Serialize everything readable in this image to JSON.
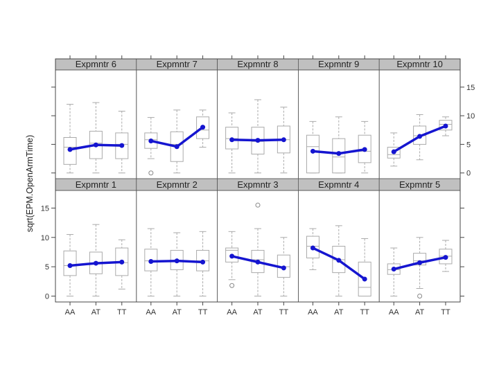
{
  "chart_data": {
    "type": "box",
    "ylabel": "sqrt(EPM.OpenArmTime)",
    "categories": [
      "AA",
      "AT",
      "TT"
    ],
    "y_ticks": [
      0,
      5,
      10,
      15
    ],
    "ylim": [
      -1,
      18
    ],
    "summary_line_color": "#1515d0",
    "box_color": "#aaaaaa",
    "strip_color": "#c0c0c0",
    "panels": [
      {
        "name": "Expmntr 6",
        "row": 0,
        "col": 0,
        "means": [
          4.1,
          4.9,
          4.8
        ],
        "boxes": [
          {
            "low": 0,
            "q1": 1.5,
            "median": 4.5,
            "q3": 6.2,
            "high": 12.0,
            "outliers": []
          },
          {
            "low": 0,
            "q1": 2.5,
            "median": 5.2,
            "q3": 7.3,
            "high": 12.3,
            "outliers": []
          },
          {
            "low": 0,
            "q1": 2.5,
            "median": 5.0,
            "q3": 7.0,
            "high": 10.8,
            "outliers": []
          }
        ]
      },
      {
        "name": "Expmntr 7",
        "row": 0,
        "col": 1,
        "means": [
          5.6,
          4.6,
          8.0
        ],
        "boxes": [
          {
            "low": 2.5,
            "q1": 4.3,
            "median": 5.8,
            "q3": 7.0,
            "high": 9.7,
            "outliers": [
              0
            ]
          },
          {
            "low": 0,
            "q1": 2.0,
            "median": 5.0,
            "q3": 7.2,
            "high": 11.0,
            "outliers": []
          },
          {
            "low": 4.5,
            "q1": 6.0,
            "median": 7.5,
            "q3": 9.8,
            "high": 11.0,
            "outliers": []
          }
        ]
      },
      {
        "name": "Expmntr 8",
        "row": 0,
        "col": 2,
        "means": [
          5.8,
          5.7,
          5.8
        ],
        "boxes": [
          {
            "low": 0,
            "q1": 4.2,
            "median": 6.0,
            "q3": 8.0,
            "high": 10.5,
            "outliers": []
          },
          {
            "low": 0,
            "q1": 3.3,
            "median": 5.5,
            "q3": 8.0,
            "high": 12.8,
            "outliers": []
          },
          {
            "low": 0,
            "q1": 3.5,
            "median": 5.8,
            "q3": 8.2,
            "high": 11.5,
            "outliers": []
          }
        ]
      },
      {
        "name": "Expmntr 9",
        "row": 0,
        "col": 3,
        "means": [
          3.8,
          3.4,
          4.1
        ],
        "boxes": [
          {
            "low": 0,
            "q1": 0,
            "median": 4.6,
            "q3": 6.6,
            "high": 9.0,
            "outliers": []
          },
          {
            "low": 0,
            "q1": 0,
            "median": 2.8,
            "q3": 6.0,
            "high": 9.8,
            "outliers": []
          },
          {
            "low": 0,
            "q1": 1.8,
            "median": 3.8,
            "q3": 6.6,
            "high": 9.0,
            "outliers": []
          }
        ]
      },
      {
        "name": "Expmntr 10",
        "row": 0,
        "col": 4,
        "means": [
          3.7,
          6.4,
          8.2
        ],
        "boxes": [
          {
            "low": 1.2,
            "q1": 2.6,
            "median": 3.2,
            "q3": 4.5,
            "high": 7.0,
            "outliers": []
          },
          {
            "low": 2.3,
            "q1": 5.0,
            "median": 6.5,
            "q3": 8.2,
            "high": 10.2,
            "outliers": []
          },
          {
            "low": 6.5,
            "q1": 7.5,
            "median": 8.5,
            "q3": 9.2,
            "high": 9.8,
            "outliers": []
          }
        ]
      },
      {
        "name": "Expmntr 1",
        "row": 1,
        "col": 0,
        "means": [
          5.2,
          5.6,
          5.8
        ],
        "boxes": [
          {
            "low": 0,
            "q1": 3.5,
            "median": 5.2,
            "q3": 7.7,
            "high": 10.5,
            "outliers": []
          },
          {
            "low": 0,
            "q1": 3.8,
            "median": 5.6,
            "q3": 7.5,
            "high": 12.2,
            "outliers": []
          },
          {
            "low": 1.2,
            "q1": 3.5,
            "median": 5.7,
            "q3": 8.2,
            "high": 9.6,
            "outliers": []
          }
        ]
      },
      {
        "name": "Expmntr 2",
        "row": 1,
        "col": 1,
        "means": [
          5.9,
          6.0,
          5.8
        ],
        "boxes": [
          {
            "low": 0,
            "q1": 4.3,
            "median": 6.0,
            "q3": 8.0,
            "high": 11.5,
            "outliers": []
          },
          {
            "low": 0,
            "q1": 4.5,
            "median": 6.0,
            "q3": 7.8,
            "high": 10.8,
            "outliers": []
          },
          {
            "low": 0,
            "q1": 4.3,
            "median": 6.0,
            "q3": 7.8,
            "high": 11.0,
            "outliers": []
          }
        ]
      },
      {
        "name": "Expmntr 3",
        "row": 1,
        "col": 2,
        "means": [
          6.8,
          5.8,
          4.8
        ],
        "boxes": [
          {
            "low": 2.8,
            "q1": 5.8,
            "median": 7.8,
            "q3": 8.2,
            "high": 11.0,
            "outliers": [
              1.8
            ]
          },
          {
            "low": 0,
            "q1": 4.0,
            "median": 6.2,
            "q3": 7.8,
            "high": 11.5,
            "outliers": [
              15.5
            ]
          },
          {
            "low": 0,
            "q1": 3.2,
            "median": 5.0,
            "q3": 7.0,
            "high": 10.0,
            "outliers": []
          }
        ]
      },
      {
        "name": "Expmntr 4",
        "row": 1,
        "col": 3,
        "means": [
          8.2,
          6.1,
          2.9
        ],
        "boxes": [
          {
            "low": 4.5,
            "q1": 6.5,
            "median": 8.5,
            "q3": 10.2,
            "high": 11.5,
            "outliers": []
          },
          {
            "low": 0,
            "q1": 4.0,
            "median": 6.2,
            "q3": 8.5,
            "high": 12.0,
            "outliers": []
          },
          {
            "low": 0,
            "q1": 0,
            "median": 1.5,
            "q3": 5.8,
            "high": 9.8,
            "outliers": []
          }
        ]
      },
      {
        "name": "Expmntr 5",
        "row": 1,
        "col": 4,
        "means": [
          4.6,
          5.7,
          6.6
        ],
        "boxes": [
          {
            "low": 0,
            "q1": 3.7,
            "median": 4.5,
            "q3": 5.5,
            "high": 8.2,
            "outliers": []
          },
          {
            "low": 1.3,
            "q1": 5.3,
            "median": 6.0,
            "q3": 7.3,
            "high": 10.0,
            "outliers": [
              0
            ]
          },
          {
            "low": 4.2,
            "q1": 5.5,
            "median": 6.8,
            "q3": 8.0,
            "high": 9.5,
            "outliers": []
          }
        ]
      }
    ]
  }
}
